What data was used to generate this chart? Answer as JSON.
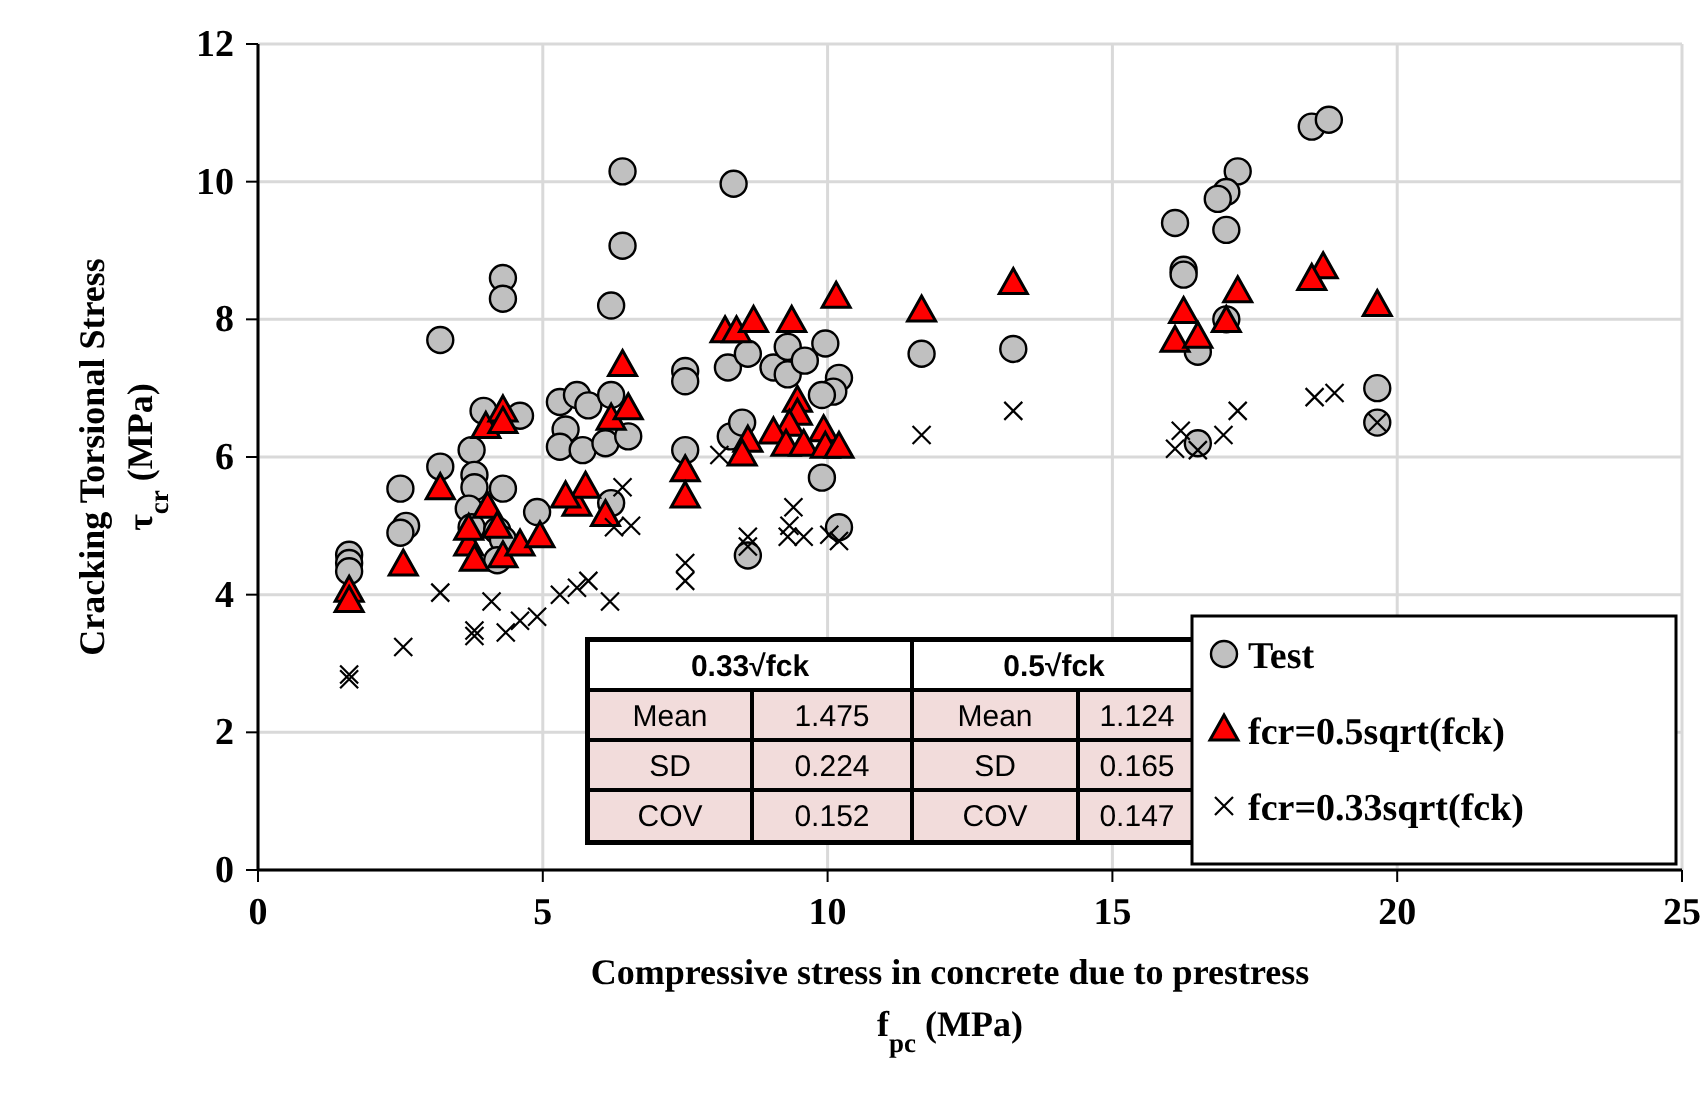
{
  "chart_data": {
    "type": "scatter",
    "xlabel": "Compressive stress in concrete due to prestress\nf$_{pc}$ (MPa)",
    "ylabel": "Cracking Torsional Stress\nτ$_{cr}$ (MPa)",
    "xlim": [
      0,
      25
    ],
    "xticks": [
      0,
      5,
      10,
      15,
      20,
      25
    ],
    "ylim": [
      0,
      12
    ],
    "yticks": [
      0,
      2,
      4,
      6,
      8,
      10,
      12
    ],
    "grid": true,
    "legend": "bottom right",
    "annotations": [
      "0.33√fck",
      "0.5√fck",
      "Mean",
      "1.475",
      "Mean",
      "1.124",
      "SD",
      "0.224",
      "SD",
      "0.165",
      "COV",
      "0.152",
      "COV",
      "0.147"
    ],
    "series": [
      {
        "name": "Test",
        "color": "#c0c0c0",
        "marker": "circle",
        "x": [
          1.6,
          1.6,
          1.6,
          2.5,
          2.6,
          2.5,
          3.2,
          3.2,
          4.3,
          4.3,
          3.96,
          4.6,
          3.75,
          3.8,
          3.8,
          4.3,
          3.7,
          3.75,
          4.2,
          4.3,
          4.2,
          4.9,
          5.3,
          5.6,
          5.8,
          5.4,
          5.3,
          5.7,
          6.2,
          6.1,
          6.5,
          6.2,
          6.4,
          6.4,
          6.2,
          7.5,
          7.5,
          7.5,
          8.35,
          8.25,
          8.3,
          8.6,
          9.05,
          9.3,
          9.3,
          9.6,
          9.96,
          10.2,
          10.1,
          9.9,
          8.5,
          9.9,
          8.6,
          10.2,
          11.65,
          13.26,
          18.5,
          18.8,
          17.2,
          17.0,
          16.85,
          16.1,
          17.0,
          16.25,
          16.25,
          17.0,
          16.5,
          19.65,
          19.65,
          16.5
        ],
        "values": [
          4.58,
          4.46,
          4.34,
          5.54,
          5.0,
          4.9,
          7.7,
          5.86,
          8.6,
          8.3,
          6.67,
          6.6,
          6.1,
          5.74,
          5.56,
          5.54,
          5.25,
          4.98,
          4.93,
          4.8,
          4.5,
          5.2,
          6.8,
          6.9,
          6.75,
          6.4,
          6.15,
          6.1,
          6.9,
          6.2,
          6.3,
          5.33,
          10.15,
          9.07,
          8.2,
          7.25,
          7.1,
          6.1,
          9.97,
          7.3,
          6.3,
          7.5,
          7.3,
          7.2,
          7.6,
          7.4,
          7.65,
          7.15,
          6.95,
          6.9,
          6.5,
          5.7,
          4.57,
          4.98,
          7.5,
          7.57,
          10.8,
          10.9,
          10.15,
          9.85,
          9.75,
          9.4,
          9.3,
          8.72,
          8.65,
          8.0,
          7.53,
          7.0,
          6.5,
          6.2
        ]
      },
      {
        "name": "fcr=0.5sqrt(fck)",
        "color": "#ff0000",
        "marker": "triangle",
        "x": [
          1.6,
          1.6,
          2.55,
          3.2,
          4.0,
          4.3,
          4.3,
          4.03,
          3.7,
          3.8,
          4.3,
          4.6,
          4.95,
          4.2,
          3.7,
          5.6,
          5.75,
          5.4,
          6.1,
          6.4,
          6.2,
          6.5,
          7.5,
          7.5,
          8.2,
          8.4,
          8.7,
          9.37,
          10.15,
          9.47,
          9.47,
          9.33,
          9.05,
          8.6,
          8.5,
          9.93,
          9.27,
          9.58,
          9.96,
          10.2,
          11.65,
          13.26,
          18.7,
          18.5,
          19.65,
          17.2,
          16.25,
          17.0,
          16.1,
          16.5
        ],
        "values": [
          4.05,
          3.9,
          4.43,
          5.54,
          6.43,
          6.67,
          6.5,
          5.27,
          4.72,
          4.5,
          4.55,
          4.72,
          4.84,
          4.98,
          4.95,
          5.3,
          5.56,
          5.42,
          5.15,
          7.33,
          6.55,
          6.7,
          5.8,
          5.42,
          7.82,
          7.82,
          7.97,
          7.97,
          8.32,
          6.81,
          6.62,
          6.46,
          6.35,
          6.23,
          6.03,
          6.38,
          6.17,
          6.17,
          6.14,
          6.14,
          8.12,
          8.52,
          8.75,
          8.58,
          8.2,
          8.4,
          8.1,
          7.97,
          7.68,
          7.74
        ]
      },
      {
        "name": "fcr=0.33sqrt(fck)",
        "color": "#000000",
        "marker": "cross",
        "x": [
          1.6,
          1.6,
          2.55,
          3.2,
          3.8,
          3.8,
          4.35,
          4.1,
          4.6,
          4.9,
          5.3,
          5.6,
          5.8,
          6.18,
          7.5,
          7.5,
          6.4,
          6.55,
          6.25,
          8.6,
          8.6,
          9.4,
          9.33,
          9.3,
          9.58,
          10.03,
          10.2,
          8.1,
          11.65,
          13.26,
          16.2,
          16.1,
          16.5,
          16.95,
          17.2,
          18.55,
          18.9,
          19.65
        ],
        "values": [
          2.84,
          2.77,
          3.24,
          4.03,
          3.48,
          3.4,
          3.45,
          3.9,
          3.62,
          3.68,
          4.0,
          4.1,
          4.2,
          3.9,
          4.46,
          4.2,
          5.56,
          5.0,
          4.98,
          4.84,
          4.7,
          5.27,
          5.0,
          4.84,
          4.84,
          4.87,
          4.78,
          6.03,
          6.32,
          6.67,
          6.38,
          6.12,
          6.1,
          6.32,
          6.67,
          6.87,
          6.93,
          6.5
        ]
      }
    ]
  }
}
